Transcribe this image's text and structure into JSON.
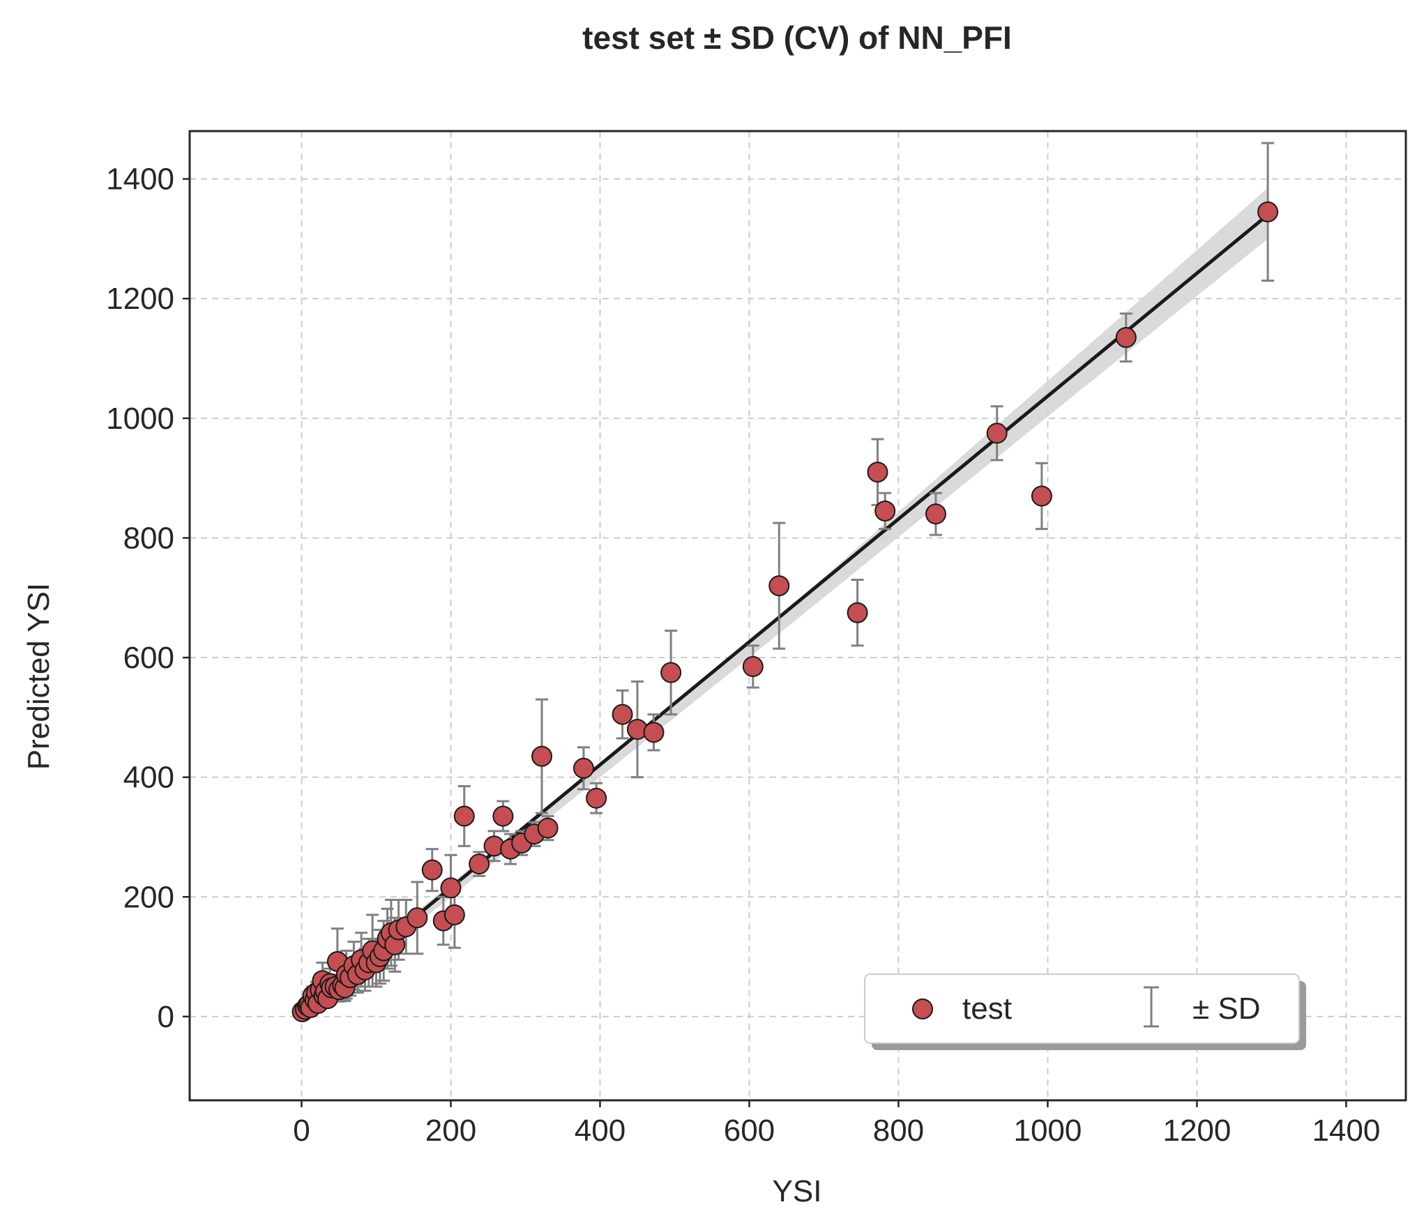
{
  "chart_data": {
    "type": "scatter",
    "title": "test set ± SD (CV) of NN_PFI",
    "xlabel": "YSI",
    "ylabel": "Predicted YSI",
    "xlim": [
      -150,
      1480
    ],
    "ylim": [
      -140,
      1480
    ],
    "xticks": [
      0,
      200,
      400,
      600,
      800,
      1000,
      1200,
      1400
    ],
    "yticks": [
      0,
      200,
      400,
      600,
      800,
      1000,
      1200,
      1400
    ],
    "xtick_labels": [
      "0",
      "200",
      "400",
      "600",
      "800",
      "1000",
      "1200",
      "1400"
    ],
    "ytick_labels": [
      "0",
      "200",
      "400",
      "600",
      "800",
      "1000",
      "1200",
      "1400"
    ],
    "grid": true,
    "legend": {
      "placement": "lower-right",
      "entries": [
        "test",
        "± SD"
      ]
    },
    "colors": {
      "marker": "#c44e52",
      "errorbar": "#808080",
      "fit_line": "#1a1a1a",
      "band": "#d3d3d3"
    },
    "fit_line": {
      "x": [
        0,
        1295
      ],
      "y": [
        10,
        1340
      ]
    },
    "confidence_band": {
      "x": [
        0,
        600,
        1295
      ],
      "lower": [
        0,
        600,
        1300
      ],
      "upper": [
        20,
        625,
        1385
      ]
    },
    "series": [
      {
        "name": "test",
        "x": [
          1,
          5,
          8,
          10,
          12,
          15,
          18,
          20,
          22,
          25,
          28,
          30,
          32,
          35,
          38,
          40,
          45,
          48,
          50,
          55,
          58,
          60,
          65,
          70,
          75,
          80,
          85,
          90,
          95,
          100,
          105,
          110,
          115,
          120,
          125,
          130,
          140,
          155,
          175,
          190,
          200,
          205,
          218,
          238,
          258,
          270,
          280,
          295,
          312,
          330,
          322,
          378,
          395,
          430,
          450,
          472,
          495,
          605,
          640,
          745,
          772,
          782,
          850,
          932,
          992,
          1105,
          1295
        ],
        "y": [
          8,
          12,
          18,
          20,
          15,
          35,
          28,
          40,
          22,
          45,
          60,
          35,
          42,
          30,
          55,
          48,
          50,
          92,
          45,
          52,
          48,
          70,
          65,
          85,
          70,
          95,
          78,
          90,
          110,
          90,
          100,
          110,
          130,
          140,
          120,
          145,
          150,
          165,
          245,
          160,
          215,
          170,
          335,
          255,
          285,
          335,
          280,
          290,
          305,
          315,
          435,
          415,
          365,
          505,
          480,
          475,
          575,
          585,
          720,
          675,
          910,
          845,
          840,
          975,
          870,
          1135,
          1345
        ],
        "sd": [
          5,
          6,
          8,
          8,
          7,
          15,
          10,
          18,
          10,
          25,
          30,
          15,
          20,
          12,
          25,
          20,
          20,
          55,
          20,
          25,
          22,
          40,
          30,
          40,
          30,
          45,
          35,
          40,
          60,
          40,
          45,
          50,
          50,
          55,
          45,
          50,
          45,
          60,
          35,
          40,
          55,
          55,
          50,
          20,
          25,
          25,
          25,
          20,
          20,
          20,
          95,
          35,
          25,
          40,
          80,
          30,
          70,
          35,
          105,
          55,
          55,
          30,
          35,
          45,
          55,
          40,
          115
        ]
      }
    ]
  }
}
